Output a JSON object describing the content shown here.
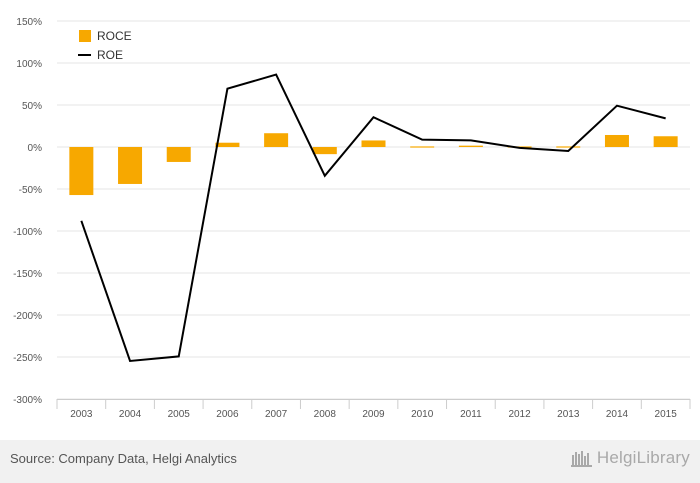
{
  "chart_data": {
    "type": "bar+line",
    "categories": [
      "2003",
      "2004",
      "2005",
      "2006",
      "2007",
      "2008",
      "2009",
      "2010",
      "2011",
      "2012",
      "2013",
      "2014",
      "2015"
    ],
    "series": [
      {
        "name": "ROCE",
        "type": "bar",
        "color": "#f7a800",
        "values": [
          -57.2,
          -44.0,
          -17.8,
          5.1,
          16.4,
          -8.5,
          7.8,
          1.4,
          1.6,
          0.0,
          -1.0,
          14.3,
          12.8
        ]
      },
      {
        "name": "ROE",
        "type": "line",
        "color": "#000000",
        "values": [
          -87.9,
          -254.7,
          -249.3,
          69.4,
          86.2,
          -34.3,
          35.4,
          8.8,
          7.9,
          -1.1,
          -4.8,
          49.2,
          34.1
        ]
      }
    ],
    "ylim": [
      -300,
      150
    ],
    "yticks": [
      150,
      100,
      50,
      0,
      -50,
      -100,
      -150,
      -200,
      -250,
      -300
    ],
    "ytick_labels": [
      "150%",
      "100%",
      "50%",
      "0%",
      "-50%",
      "-100%",
      "-150%",
      "-200%",
      "-250%",
      "-300%"
    ],
    "grid": true,
    "legend_position": "top-left"
  },
  "footer": {
    "source": "Source: Company Data, Helgi Analytics",
    "brand": "HelgiLibrary",
    "brand_icon": "helgi-library-icon"
  }
}
